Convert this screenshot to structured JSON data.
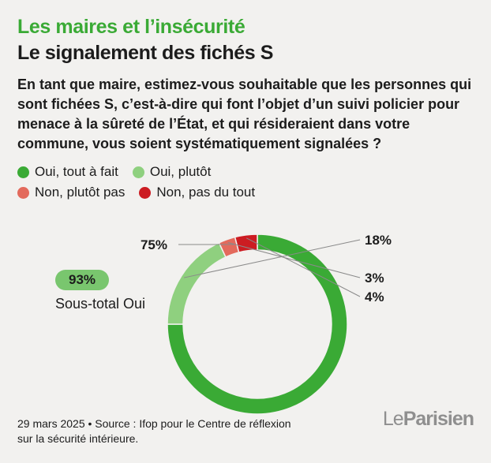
{
  "header": {
    "kicker": "Les maires et l’insécurité",
    "title": "Le signalement des fichés S"
  },
  "question": "En tant que maire, estimez-vous souhaitable que les personnes qui sont fichées S, c’est-à-dire qui font l’objet d’un suivi policier pour menace à la sûreté de l’État, et qui résideraient dans votre commune, vous soient systématiquement signalées ?",
  "legend": [
    {
      "label": "Oui, tout à fait",
      "color": "#3aaa35"
    },
    {
      "label": "Oui, plutôt",
      "color": "#8fd07f"
    },
    {
      "label": "Non, plutôt pas",
      "color": "#e36a5c"
    },
    {
      "label": "Non, pas du tout",
      "color": "#cc1c22"
    }
  ],
  "subtotal": {
    "value": "93%",
    "label": "Sous-total Oui"
  },
  "chart_data": {
    "type": "pie",
    "variant": "donut",
    "slices": [
      {
        "label": "Oui, tout à fait",
        "value": 75,
        "display": "75%",
        "color": "#3aaa35"
      },
      {
        "label": "Oui, plutôt",
        "value": 18,
        "display": "18%",
        "color": "#8fd07f"
      },
      {
        "label": "Non, plutôt pas",
        "value": 3,
        "display": "3%",
        "color": "#e36a5c"
      },
      {
        "label": "Non, pas du tout",
        "value": 4,
        "display": "4%",
        "color": "#cc1c22"
      }
    ],
    "start": "top",
    "direction": "clockwise"
  },
  "footer": {
    "line1": "29 mars 2025 • Source : Ifop pour le Centre de réflexion",
    "line2": "sur la sécurité intérieure."
  },
  "logo": {
    "part1": "Le",
    "part2": "Parisien"
  }
}
